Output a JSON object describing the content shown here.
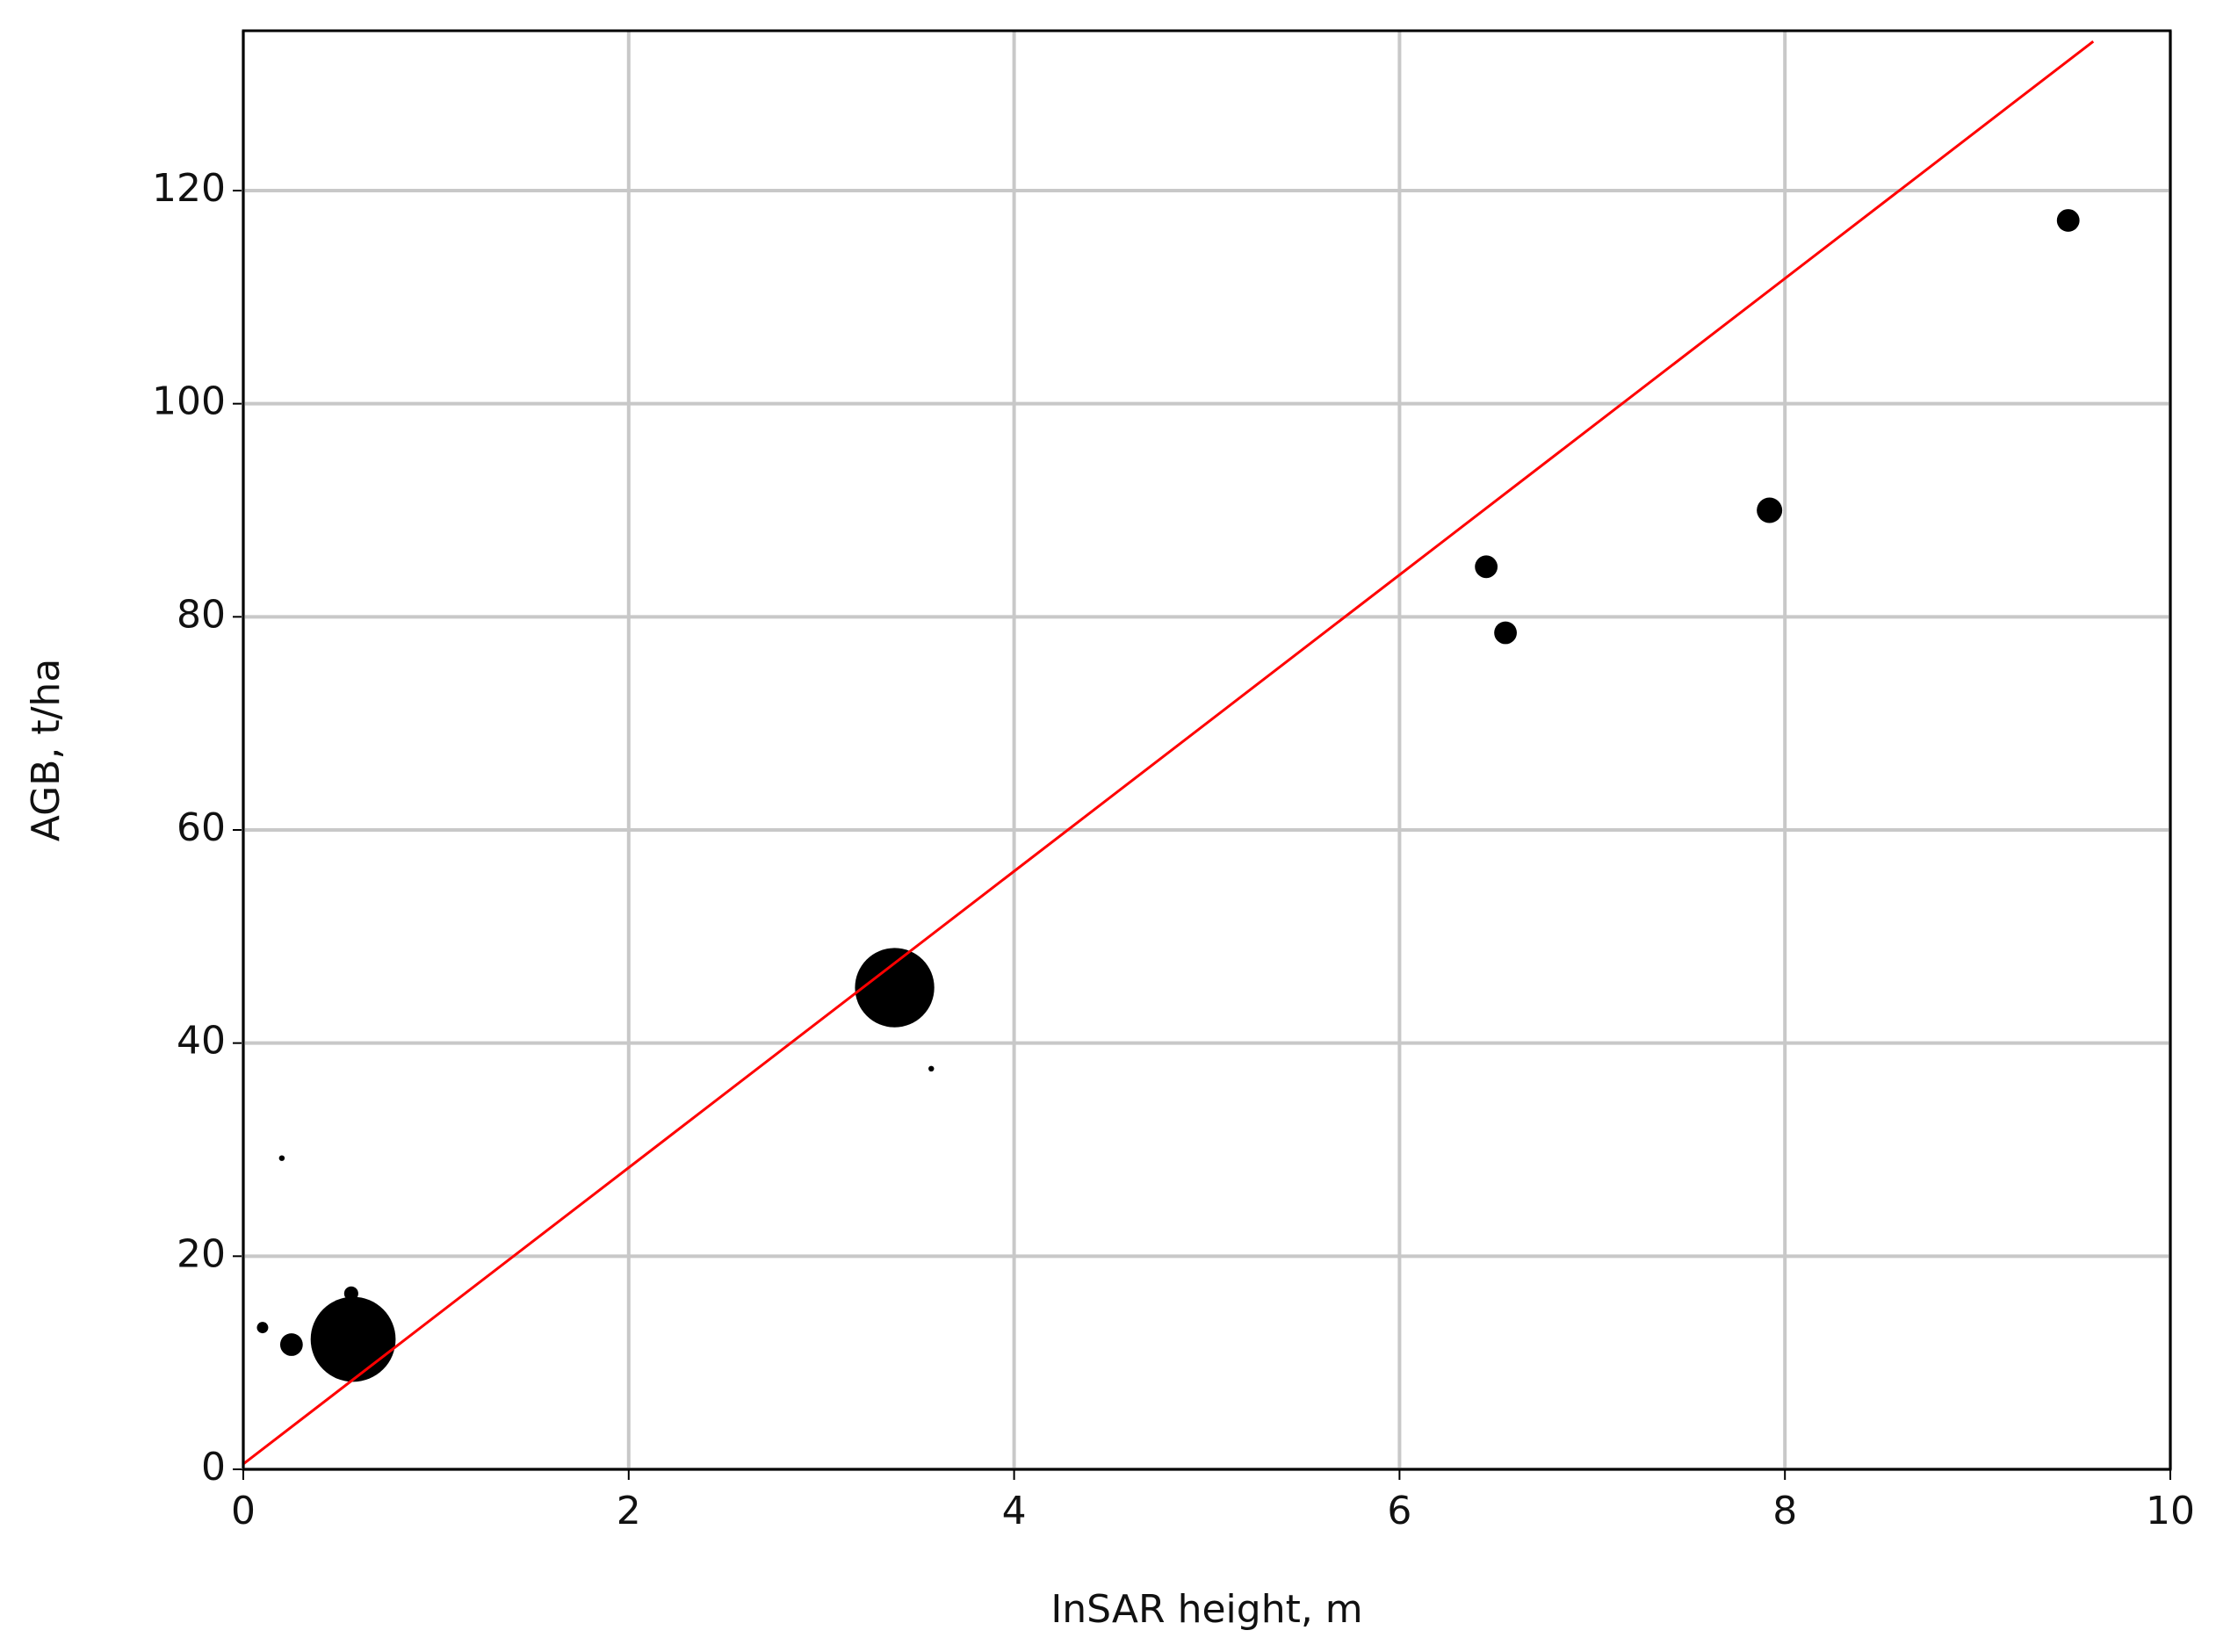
{
  "chart_data": {
    "type": "scatter",
    "xlabel": "InSAR height, m",
    "ylabel": "AGB, t/ha",
    "x": [
      0.1,
      0.25,
      0.56,
      0.57,
      0.2,
      3.38,
      3.57,
      6.45,
      6.55,
      7.92,
      9.47
    ],
    "values": [
      13.3,
      11.7,
      16.5,
      12.2,
      29.2,
      45.2,
      37.6,
      84.7,
      78.5,
      90,
      117.2
    ],
    "sizes": [
      4,
      8,
      5,
      30,
      2,
      28,
      2,
      8,
      8,
      9,
      8
    ],
    "color": "#000000",
    "fit_line": {
      "x": [
        0,
        9.6
      ],
      "y": [
        0.5,
        134
      ],
      "color": "#ff0000"
    },
    "xlim": [
      0,
      10
    ],
    "ylim": [
      0,
      135
    ],
    "xticks": [
      0,
      2,
      4,
      6,
      8,
      10
    ],
    "yticks": [
      0,
      20,
      40,
      60,
      80,
      100,
      120
    ],
    "grid": true
  }
}
